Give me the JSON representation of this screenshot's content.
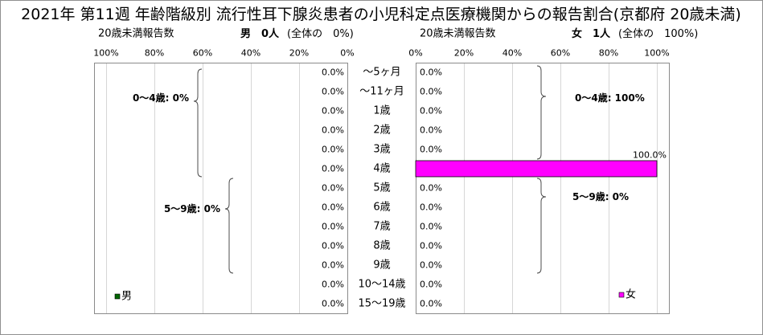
{
  "chart_data": {
    "type": "bar",
    "orientation": "horizontal",
    "title": "2021年 第11週 年齢階級別 流行性耳下腺炎患者の小児科定点医療機関からの報告割合(京都府 20歳未満)",
    "categories": [
      "～5ヶ月",
      "～11ヶ月",
      "1歳",
      "2歳",
      "3歳",
      "4歳",
      "5歳",
      "6歳",
      "7歳",
      "8歳",
      "9歳",
      "10～14歳",
      "15～19歳"
    ],
    "xlim": [
      0,
      105
    ],
    "grid": true,
    "series": [
      {
        "name": "男",
        "side": "left",
        "axis_reversed": true,
        "color": "#006600",
        "values": [
          0,
          0,
          0,
          0,
          0,
          0,
          0,
          0,
          0,
          0,
          0,
          0,
          0
        ],
        "data_labels": [
          "0.0%",
          "0.0%",
          "0.0%",
          "0.0%",
          "0.0%",
          "0.0%",
          "0.0%",
          "0.0%",
          "0.0%",
          "0.0%",
          "0.0%",
          "0.0%",
          "0.0%"
        ],
        "header": {
          "label": "20歳未満報告数",
          "count": "男　0人",
          "share": "(全体の　0%)"
        },
        "ticks": [
          0,
          20,
          40,
          60,
          80,
          100
        ],
        "tick_labels": [
          "0%",
          "20%",
          "40%",
          "60%",
          "80%",
          "100%"
        ],
        "groups": [
          {
            "label": "0～4歳: 0%",
            "from": "～5ヶ月",
            "to": "4歳"
          },
          {
            "label": "5～9歳: 0%",
            "from": "5歳",
            "to": "9歳"
          }
        ],
        "legend_position": "bottom-left"
      },
      {
        "name": "女",
        "side": "right",
        "axis_reversed": false,
        "color": "#ff00ff",
        "values": [
          0,
          0,
          0,
          0,
          0,
          100,
          0,
          0,
          0,
          0,
          0,
          0,
          0
        ],
        "data_labels": [
          "0.0%",
          "0.0%",
          "0.0%",
          "0.0%",
          "0.0%",
          "100.0%",
          "0.0%",
          "0.0%",
          "0.0%",
          "0.0%",
          "0.0%",
          "0.0%",
          "0.0%"
        ],
        "header": {
          "label": "20歳未満報告数",
          "count": "女　1人",
          "share": "(全体の　100%)"
        },
        "ticks": [
          0,
          20,
          40,
          60,
          80,
          100
        ],
        "tick_labels": [
          "0%",
          "20%",
          "40%",
          "60%",
          "80%",
          "100%"
        ],
        "groups": [
          {
            "label": "0～4歳: 100%",
            "from": "～5ヶ月",
            "to": "4歳"
          },
          {
            "label": "5～9歳: 0%",
            "from": "5歳",
            "to": "9歳"
          }
        ],
        "legend_position": "bottom-right"
      }
    ]
  }
}
